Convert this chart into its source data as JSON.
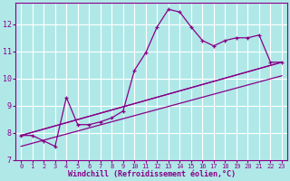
{
  "xlabel": "Windchill (Refroidissement éolien,°C)",
  "bg_color": "#b0e8e8",
  "line_color": "#880088",
  "grid_color": "#ffffff",
  "xlim": [
    -0.5,
    23.5
  ],
  "ylim": [
    7.0,
    12.8
  ],
  "yticks": [
    7,
    8,
    9,
    10,
    11,
    12
  ],
  "xticks": [
    0,
    1,
    2,
    3,
    4,
    5,
    6,
    7,
    8,
    9,
    10,
    11,
    12,
    13,
    14,
    15,
    16,
    17,
    18,
    19,
    20,
    21,
    22,
    23
  ],
  "series1_x": [
    0,
    1,
    2,
    3,
    4,
    5,
    6,
    7,
    8,
    9,
    10,
    11,
    12,
    13,
    14,
    15,
    16,
    17,
    18,
    19,
    20,
    21,
    22,
    23
  ],
  "series1_y": [
    7.9,
    7.9,
    7.7,
    7.5,
    9.3,
    8.3,
    8.3,
    8.4,
    8.55,
    8.8,
    10.3,
    10.95,
    11.9,
    12.55,
    12.45,
    11.9,
    11.4,
    11.2,
    11.4,
    11.5,
    11.5,
    11.6,
    10.6,
    10.6
  ],
  "line2_x": [
    0,
    23
  ],
  "line2_y": [
    7.9,
    10.6
  ],
  "line3_x": [
    0,
    23
  ],
  "line3_y": [
    7.9,
    10.6
  ],
  "line4_x": [
    0,
    23
  ],
  "line4_y": [
    7.5,
    10.1
  ]
}
